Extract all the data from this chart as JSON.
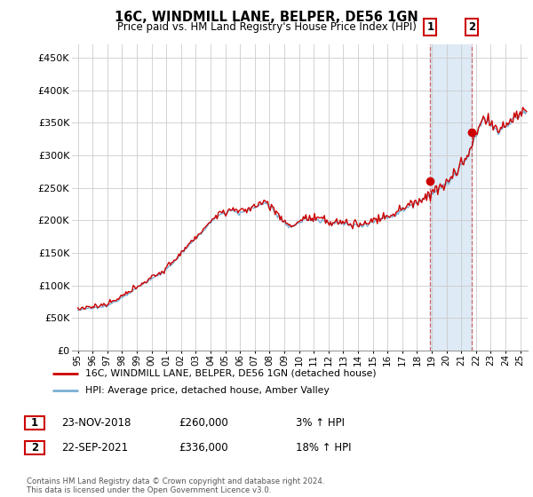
{
  "title": "16C, WINDMILL LANE, BELPER, DE56 1GN",
  "subtitle": "Price paid vs. HM Land Registry's House Price Index (HPI)",
  "ylabel_ticks": [
    "£0",
    "£50K",
    "£100K",
    "£150K",
    "£200K",
    "£250K",
    "£300K",
    "£350K",
    "£400K",
    "£450K"
  ],
  "ytick_values": [
    0,
    50000,
    100000,
    150000,
    200000,
    250000,
    300000,
    350000,
    400000,
    450000
  ],
  "ylim": [
    0,
    470000
  ],
  "xlim_start": 1994.6,
  "xlim_end": 2025.5,
  "marker1_x": 2018.9,
  "marker1_y": 260000,
  "marker1_label": "1",
  "marker2_x": 2021.72,
  "marker2_y": 336000,
  "marker2_label": "2",
  "legend_line1": "16C, WINDMILL LANE, BELPER, DE56 1GN (detached house)",
  "legend_line2": "HPI: Average price, detached house, Amber Valley",
  "table_row1": [
    "1",
    "23-NOV-2018",
    "£260,000",
    "3% ↑ HPI"
  ],
  "table_row2": [
    "2",
    "22-SEP-2021",
    "£336,000",
    "18% ↑ HPI"
  ],
  "footnote": "Contains HM Land Registry data © Crown copyright and database right 2024.\nThis data is licensed under the Open Government Licence v3.0.",
  "line_color_red": "#cc0000",
  "line_color_blue": "#7ab0d4",
  "vline_color": "#cc6666",
  "marker_color": "#cc0000",
  "marker_box_edge": "#cc0000",
  "shaded_color": "#deeaf5",
  "grid_color": "#cccccc",
  "background_color": "#ffffff"
}
